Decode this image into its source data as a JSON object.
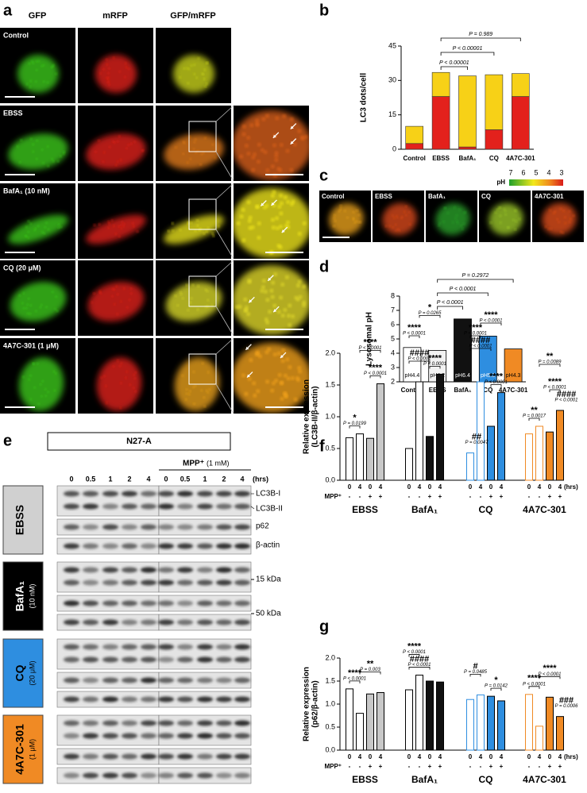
{
  "panel_labels": [
    "a",
    "b",
    "c",
    "d",
    "e",
    "f",
    "g"
  ],
  "panel_a": {
    "columns": [
      "GFP",
      "mRFP",
      "GFP/mRFP"
    ],
    "rows": [
      "Control",
      "EBSS",
      "BafA₁ (10 nM)",
      "CQ (20 μM)",
      "4A7C-301 (1 μM)"
    ]
  },
  "panel_c": {
    "colorbar_label": "pH",
    "colorbar_ticks": [
      "7",
      "6",
      "5",
      "4",
      "3"
    ],
    "images": [
      "Control",
      "EBSS",
      "BafA₁",
      "CQ",
      "4A7C-301"
    ]
  },
  "panel_e": {
    "title": "N27-A",
    "treatment": "MPP⁺",
    "treatment_dose": "(1 mM)",
    "time_points": [
      "0",
      "0.5",
      "1",
      "2",
      "4",
      "0",
      "0.5",
      "1",
      "2",
      "4"
    ],
    "time_unit": "(hrs)",
    "groups": [
      {
        "name": "EBSS"
      },
      {
        "name": "BafA₁",
        "dose": "(10 nM)"
      },
      {
        "name": "CQ",
        "dose": "(20 μM)"
      },
      {
        "name": "4A7C-301",
        "dose": "(1 μM)"
      }
    ],
    "band_labels": [
      "LC3B-I",
      "LC3B-II",
      "p62",
      "β-actin"
    ],
    "markers": [
      "15 kDa",
      "50 kDa"
    ]
  },
  "chart_data": [
    {
      "type": "stacked_bar",
      "y_label": "LC3 dots/cell",
      "categories": [
        "Control",
        "EBSS",
        "BafA₁",
        "CQ",
        "4A7C-301"
      ],
      "series": [
        {
          "color": "#e3211c",
          "values": [
            2.5,
            23,
            1,
            8.5,
            23
          ]
        },
        {
          "color": "#f7d117",
          "values": [
            7.5,
            10.5,
            31,
            24,
            10
          ]
        }
      ],
      "ylim": [
        0,
        45
      ],
      "yticks": [
        0,
        15,
        30,
        45
      ],
      "comparisons": [
        "P < 0.00001",
        "P < 0.00001",
        "P = 0.989"
      ]
    },
    {
      "type": "bar",
      "y_label": "Lysosomal pH",
      "categories": [
        "Control",
        "EBSS",
        "BafA₁",
        "CQ",
        "4A7C-301"
      ],
      "values": [
        4.4,
        4.2,
        6.4,
        5.2,
        4.3
      ],
      "value_labels": [
        "pH4.4",
        "pH4.2",
        "pH6.4",
        "pH5.2",
        "pH4.3"
      ],
      "colors": [
        "#ffffff",
        "#f2f2f2",
        "#111111",
        "#2e8ee0",
        "#f08a24"
      ],
      "ylim": [
        2,
        8
      ],
      "yticks": [
        2,
        3,
        4,
        5,
        6,
        7,
        8
      ],
      "comparisons": [
        "P < 0.0001",
        "P < 0.0001",
        "P = 0.2972"
      ]
    },
    {
      "type": "grouped_bar",
      "y_label": [
        "Relative expression",
        "(LC3B-II/β-actin)"
      ],
      "categories": [
        "0",
        "4",
        "0",
        "4",
        "0",
        "4",
        "0",
        "4",
        "0",
        "4",
        "0",
        "4",
        "0",
        "4",
        "0",
        "4"
      ],
      "mpp_label": "MPP⁺",
      "mpp": [
        "-",
        "-",
        "+",
        "+",
        "-",
        "-",
        "+",
        "+",
        "-",
        "-",
        "+",
        "+",
        "-",
        "-",
        "+",
        "+"
      ],
      "x_unit": "(hrs)",
      "groups": [
        "EBSS",
        "BafA₁",
        "CQ",
        "4A7C-301"
      ],
      "group_colors": [
        "#c8c8c8",
        "#111111",
        "#2e8ee0",
        "#f08a24"
      ],
      "edge_colors": [
        "#000000",
        "#000000",
        "#2e8ee0",
        "#f08a24"
      ],
      "values": [
        0.67,
        0.73,
        0.66,
        1.52,
        0.5,
        1.55,
        0.69,
        1.67,
        0.43,
        1.55,
        0.85,
        1.38,
        0.73,
        0.85,
        0.76,
        1.1
      ],
      "ylim": [
        0,
        2
      ],
      "yticks": [
        {
          "value": 0,
          "label": "0.0"
        },
        0.5,
        {
          "value": 1,
          "label": "1.0"
        },
        1.5,
        {
          "value": 2,
          "label": "2.0"
        }
      ],
      "annotations": [
        {
          "text": "*",
          "p": "P = 0.0199"
        },
        {
          "text": "****",
          "p": "P < 0.0001"
        },
        {
          "text": "****",
          "p": "P < 0.0001"
        },
        {
          "text": "*",
          "p": "P = 0.0265"
        },
        {
          "text": "****",
          "p": "P < 0.0001"
        },
        {
          "text": "####",
          "p": "P < 0.0001"
        },
        {
          "text": "****",
          "p": "P < 0.0001"
        },
        {
          "text": "****",
          "p": "P < 0.0001"
        },
        {
          "text": "****",
          "p": "P < 0.0001"
        },
        {
          "text": "####",
          "p": "P < 0.0001"
        },
        {
          "text": "##",
          "p": "P = 0.0047"
        },
        {
          "text": "****",
          "p": "P < 0.0001"
        },
        {
          "text": "**",
          "p": "P = 0.0089"
        },
        {
          "text": "**",
          "p": "P = 0.0017"
        },
        {
          "text": "****",
          "p": "P < 0.0001"
        },
        {
          "text": "####",
          "p": "P < 0.0001"
        }
      ]
    },
    {
      "type": "grouped_bar",
      "y_label": [
        "Relative expression",
        "(p62/β-actin)"
      ],
      "categories": [
        "0",
        "4",
        "0",
        "4",
        "0",
        "4",
        "0",
        "4",
        "0",
        "4",
        "0",
        "4",
        "0",
        "4",
        "0",
        "4"
      ],
      "mpp_label": "MPP⁺",
      "mpp": [
        "-",
        "-",
        "+",
        "+",
        "-",
        "-",
        "+",
        "+",
        "-",
        "-",
        "+",
        "+",
        "-",
        "-",
        "+",
        "+"
      ],
      "x_unit": "(hrs)",
      "groups": [
        "EBSS",
        "BafA₁",
        "CQ",
        "4A7C-301"
      ],
      "group_colors": [
        "#c8c8c8",
        "#111111",
        "#2e8ee0",
        "#f08a24"
      ],
      "edge_colors": [
        "#000000",
        "#000000",
        "#2e8ee0",
        "#f08a24"
      ],
      "values": [
        1.33,
        0.8,
        1.22,
        1.25,
        1.31,
        1.63,
        1.5,
        1.48,
        1.1,
        1.2,
        1.17,
        1.07,
        1.21,
        0.52,
        1.15,
        0.73
      ],
      "ylim": [
        0,
        2
      ],
      "yticks": [
        {
          "value": 0,
          "label": "0.0"
        },
        0.5,
        {
          "value": 1,
          "label": "1.0"
        },
        1.5,
        {
          "value": 2,
          "label": "2.0"
        }
      ],
      "annotations": [
        {
          "text": "****",
          "p": "P < 0.0001"
        },
        {
          "text": "**",
          "p": "P = 0.003"
        },
        {
          "text": "****",
          "p": "P < 0.0001"
        },
        {
          "text": "####",
          "p": "P < 0.0001"
        },
        {
          "text": "#",
          "p": "P = 0.0485"
        },
        {
          "text": "*",
          "p": "P = 0.0142"
        },
        {
          "text": "****",
          "p": "P < 0.0001"
        },
        {
          "text": "****",
          "p": "P < 0.0001"
        },
        {
          "text": "###",
          "p": "P = 0.0006"
        }
      ]
    }
  ]
}
